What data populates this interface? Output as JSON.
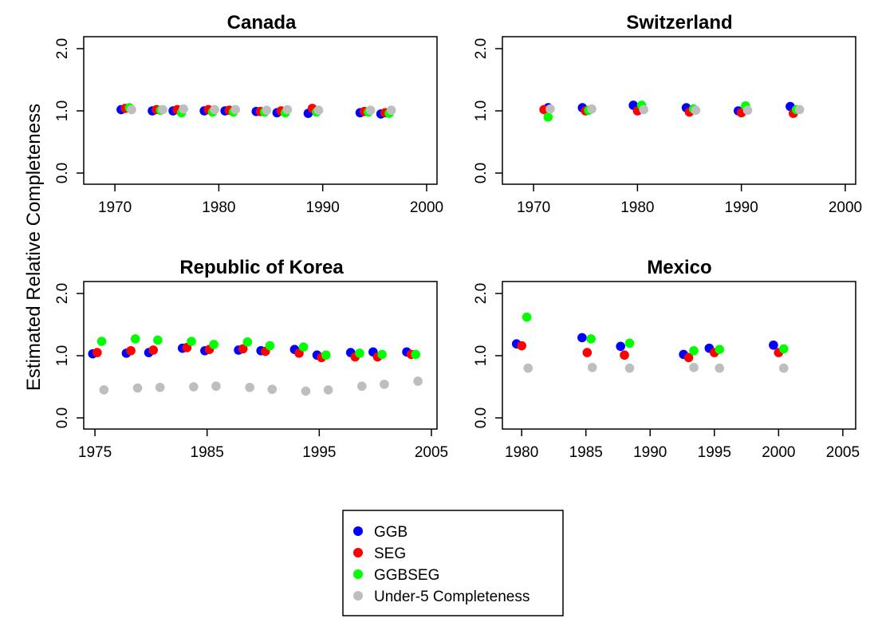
{
  "ylabel": "Estimated Relative Completeness",
  "legend": [
    {
      "label": "GGB",
      "color": "#0000ff"
    },
    {
      "label": "SEG",
      "color": "#ff0000"
    },
    {
      "label": "GGBSEG",
      "color": "#00ff00"
    },
    {
      "label": "Under-5 Completeness",
      "color": "#bebebe"
    }
  ],
  "chart_data": [
    {
      "type": "scatter",
      "title": "Canada",
      "xlim": [
        1967,
        2001
      ],
      "ylim": [
        0,
        2
      ],
      "xticks": [
        "1970",
        "1980",
        "1990",
        "2000"
      ],
      "yticks": [
        "0.0",
        "1.0",
        "2.0"
      ],
      "series": [
        {
          "name": "GGB",
          "color": "#0000ff",
          "points": [
            [
              1970.6,
              1.02
            ],
            [
              1973.6,
              1.0
            ],
            [
              1975.6,
              1.0
            ],
            [
              1978.6,
              1.0
            ],
            [
              1980.6,
              1.0
            ],
            [
              1983.6,
              0.99
            ],
            [
              1985.6,
              0.97
            ],
            [
              1988.6,
              0.96
            ],
            [
              1993.6,
              0.97
            ],
            [
              1995.6,
              0.95
            ]
          ]
        },
        {
          "name": "SEG",
          "color": "#ff0000",
          "points": [
            [
              1971.0,
              1.04
            ],
            [
              1974.0,
              1.02
            ],
            [
              1976.0,
              1.02
            ],
            [
              1979.0,
              1.02
            ],
            [
              1981.0,
              1.01
            ],
            [
              1984.0,
              0.99
            ],
            [
              1986.0,
              1.0
            ],
            [
              1989.0,
              1.04
            ],
            [
              1994.0,
              0.99
            ],
            [
              1996.0,
              0.97
            ]
          ]
        },
        {
          "name": "GGBSEG",
          "color": "#00ff00",
          "points": [
            [
              1971.4,
              1.05
            ],
            [
              1974.4,
              1.01
            ],
            [
              1976.4,
              0.97
            ],
            [
              1979.4,
              0.98
            ],
            [
              1981.4,
              0.98
            ],
            [
              1984.4,
              0.98
            ],
            [
              1986.4,
              0.97
            ],
            [
              1989.4,
              0.98
            ],
            [
              1994.4,
              0.98
            ],
            [
              1996.4,
              0.96
            ]
          ]
        },
        {
          "name": "Under-5 Completeness",
          "color": "#bebebe",
          "points": [
            [
              1971.6,
              1.02
            ],
            [
              1974.6,
              1.02
            ],
            [
              1976.6,
              1.03
            ],
            [
              1979.6,
              1.02
            ],
            [
              1981.6,
              1.02
            ],
            [
              1984.6,
              1.01
            ],
            [
              1986.6,
              1.02
            ],
            [
              1989.6,
              1.01
            ],
            [
              1994.6,
              1.01
            ],
            [
              1996.6,
              1.01
            ]
          ]
        }
      ]
    },
    {
      "type": "scatter",
      "title": "Switzerland",
      "xlim": [
        1967,
        2001
      ],
      "ylim": [
        0,
        2
      ],
      "xticks": [
        "1970",
        "1980",
        "1990",
        "2000"
      ],
      "yticks": [
        "0.0",
        "1.0",
        "2.0"
      ],
      "series": [
        {
          "name": "GGB",
          "color": "#0000ff",
          "points": [
            [
              1971.4,
              1.05
            ],
            [
              1974.7,
              1.05
            ],
            [
              1979.6,
              1.09
            ],
            [
              1984.7,
              1.05
            ],
            [
              1989.7,
              1.0
            ],
            [
              1994.7,
              1.07
            ]
          ]
        },
        {
          "name": "SEG",
          "color": "#ff0000",
          "points": [
            [
              1971.0,
              1.02
            ],
            [
              1975.0,
              1.0
            ],
            [
              1980.0,
              1.0
            ],
            [
              1985.0,
              0.98
            ],
            [
              1990.0,
              0.97
            ],
            [
              1995.0,
              0.96
            ]
          ]
        },
        {
          "name": "GGBSEG",
          "color": "#00ff00",
          "points": [
            [
              1971.4,
              0.9
            ],
            [
              1975.3,
              1.01
            ],
            [
              1980.4,
              1.09
            ],
            [
              1985.4,
              1.03
            ],
            [
              1990.4,
              1.08
            ],
            [
              1995.3,
              1.02
            ]
          ]
        },
        {
          "name": "Under-5 Completeness",
          "color": "#bebebe",
          "points": [
            [
              1971.6,
              1.03
            ],
            [
              1975.6,
              1.03
            ],
            [
              1980.6,
              1.02
            ],
            [
              1985.6,
              1.01
            ],
            [
              1990.6,
              1.01
            ],
            [
              1995.6,
              1.02
            ]
          ]
        }
      ]
    },
    {
      "type": "scatter",
      "title": "Republic of Korea",
      "xlim": [
        1974,
        2005.5
      ],
      "ylim": [
        0,
        2
      ],
      "xticks": [
        "1975",
        "1985",
        "1995",
        "2005"
      ],
      "yticks": [
        "0.0",
        "1.0",
        "2.0"
      ],
      "series": [
        {
          "name": "GGB",
          "color": "#0000ff",
          "points": [
            [
              1974.8,
              1.03
            ],
            [
              1977.8,
              1.04
            ],
            [
              1979.8,
              1.05
            ],
            [
              1982.8,
              1.12
            ],
            [
              1984.8,
              1.08
            ],
            [
              1987.8,
              1.09
            ],
            [
              1989.8,
              1.08
            ],
            [
              1992.8,
              1.1
            ],
            [
              1994.8,
              1.01
            ],
            [
              1997.8,
              1.05
            ],
            [
              1999.8,
              1.06
            ],
            [
              2002.8,
              1.06
            ]
          ]
        },
        {
          "name": "SEG",
          "color": "#ff0000",
          "points": [
            [
              1975.2,
              1.05
            ],
            [
              1978.2,
              1.08
            ],
            [
              1980.2,
              1.09
            ],
            [
              1983.2,
              1.13
            ],
            [
              1985.2,
              1.1
            ],
            [
              1988.2,
              1.11
            ],
            [
              1990.2,
              1.07
            ],
            [
              1993.2,
              1.04
            ],
            [
              1995.2,
              0.97
            ],
            [
              1998.2,
              0.98
            ],
            [
              2000.2,
              0.98
            ],
            [
              2003.2,
              1.02
            ]
          ]
        },
        {
          "name": "GGBSEG",
          "color": "#00ff00",
          "points": [
            [
              1975.6,
              1.23
            ],
            [
              1978.6,
              1.27
            ],
            [
              1980.6,
              1.25
            ],
            [
              1983.6,
              1.23
            ],
            [
              1985.6,
              1.18
            ],
            [
              1988.6,
              1.22
            ],
            [
              1990.6,
              1.16
            ],
            [
              1993.6,
              1.14
            ],
            [
              1995.6,
              1.01
            ],
            [
              1998.6,
              1.04
            ],
            [
              2000.6,
              1.02
            ],
            [
              2003.6,
              1.02
            ]
          ]
        },
        {
          "name": "Under-5 Completeness",
          "color": "#bebebe",
          "points": [
            [
              1975.8,
              0.45
            ],
            [
              1978.8,
              0.48
            ],
            [
              1980.8,
              0.49
            ],
            [
              1983.8,
              0.5
            ],
            [
              1985.8,
              0.51
            ],
            [
              1988.8,
              0.49
            ],
            [
              1990.8,
              0.46
            ],
            [
              1993.8,
              0.43
            ],
            [
              1995.8,
              0.45
            ],
            [
              1998.8,
              0.51
            ],
            [
              2000.8,
              0.54
            ],
            [
              2003.8,
              0.59
            ]
          ]
        }
      ]
    },
    {
      "type": "scatter",
      "title": "Mexico",
      "xlim": [
        1978.5,
        2006
      ],
      "ylim": [
        0,
        2
      ],
      "xticks": [
        "1980",
        "1985",
        "1990",
        "1995",
        "2000",
        "2005"
      ],
      "yticks": [
        "0.0",
        "1.0",
        "2.0"
      ],
      "series": [
        {
          "name": "GGB",
          "color": "#0000ff",
          "points": [
            [
              1979.6,
              1.19
            ],
            [
              1984.7,
              1.29
            ],
            [
              1987.7,
              1.15
            ],
            [
              1992.6,
              1.02
            ],
            [
              1994.6,
              1.12
            ],
            [
              1999.6,
              1.17
            ]
          ]
        },
        {
          "name": "SEG",
          "color": "#ff0000",
          "points": [
            [
              1980.0,
              1.16
            ],
            [
              1985.1,
              1.05
            ],
            [
              1988.0,
              1.01
            ],
            [
              1993.0,
              0.97
            ],
            [
              1995.0,
              1.05
            ],
            [
              2000.0,
              1.05
            ]
          ]
        },
        {
          "name": "GGBSEG",
          "color": "#00ff00",
          "points": [
            [
              1980.4,
              1.62
            ],
            [
              1985.4,
              1.27
            ],
            [
              1988.4,
              1.2
            ],
            [
              1993.4,
              1.08
            ],
            [
              1995.4,
              1.1
            ],
            [
              2000.4,
              1.11
            ]
          ]
        },
        {
          "name": "Under-5 Completeness",
          "color": "#bebebe",
          "points": [
            [
              1980.5,
              0.8
            ],
            [
              1985.5,
              0.81
            ],
            [
              1988.4,
              0.8
            ],
            [
              1993.4,
              0.81
            ],
            [
              1995.4,
              0.8
            ],
            [
              2000.4,
              0.8
            ]
          ]
        }
      ]
    }
  ]
}
